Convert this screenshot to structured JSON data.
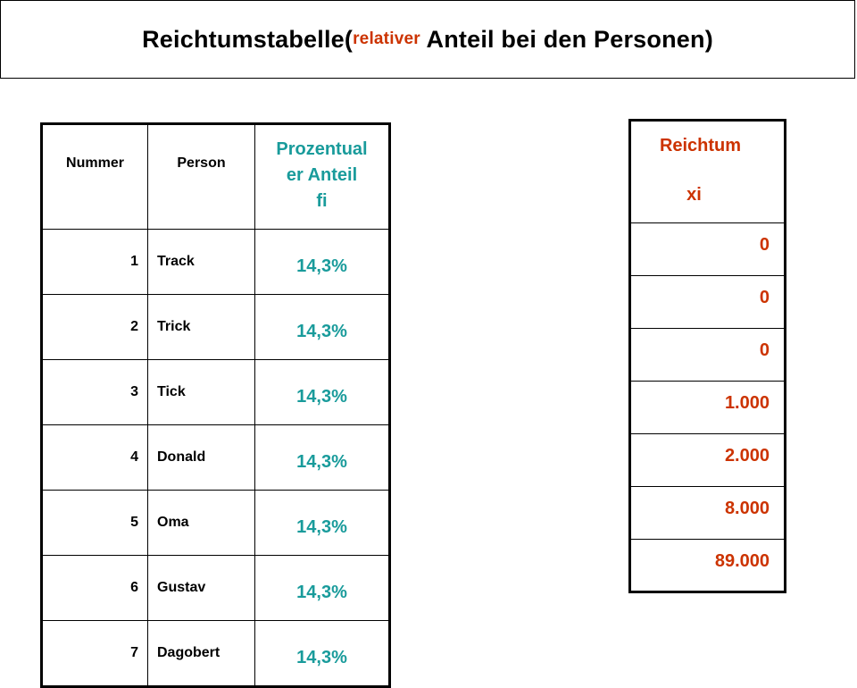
{
  "title": {
    "prefix": "Reichtumstabelle(",
    "accent": "relativer",
    "suffix": " Anteil bei den Personen)"
  },
  "colors": {
    "accent_red": "#cc3300",
    "teal": "#199b9b"
  },
  "left_table": {
    "headers": {
      "nummer": "Nummer",
      "person": "Person",
      "anteil_line1": "Prozentual",
      "anteil_line2": "er Anteil",
      "anteil_line3": "fi"
    },
    "rows": [
      {
        "nummer": "1",
        "person": "Track",
        "anteil": "14,3%"
      },
      {
        "nummer": "2",
        "person": "Trick",
        "anteil": "14,3%"
      },
      {
        "nummer": "3",
        "person": "Tick",
        "anteil": "14,3%"
      },
      {
        "nummer": "4",
        "person": "Donald",
        "anteil": "14,3%"
      },
      {
        "nummer": "5",
        "person": "Oma",
        "anteil": "14,3%"
      },
      {
        "nummer": "6",
        "person": "Gustav",
        "anteil": "14,3%"
      },
      {
        "nummer": "7",
        "person": "Dagobert",
        "anteil": "14,3%"
      }
    ]
  },
  "right_table": {
    "header_line1": "Reichtum",
    "header_line2": "xi",
    "values": [
      "0",
      "0",
      "0",
      "1.000",
      "2.000",
      "8.000",
      "89.000"
    ]
  }
}
